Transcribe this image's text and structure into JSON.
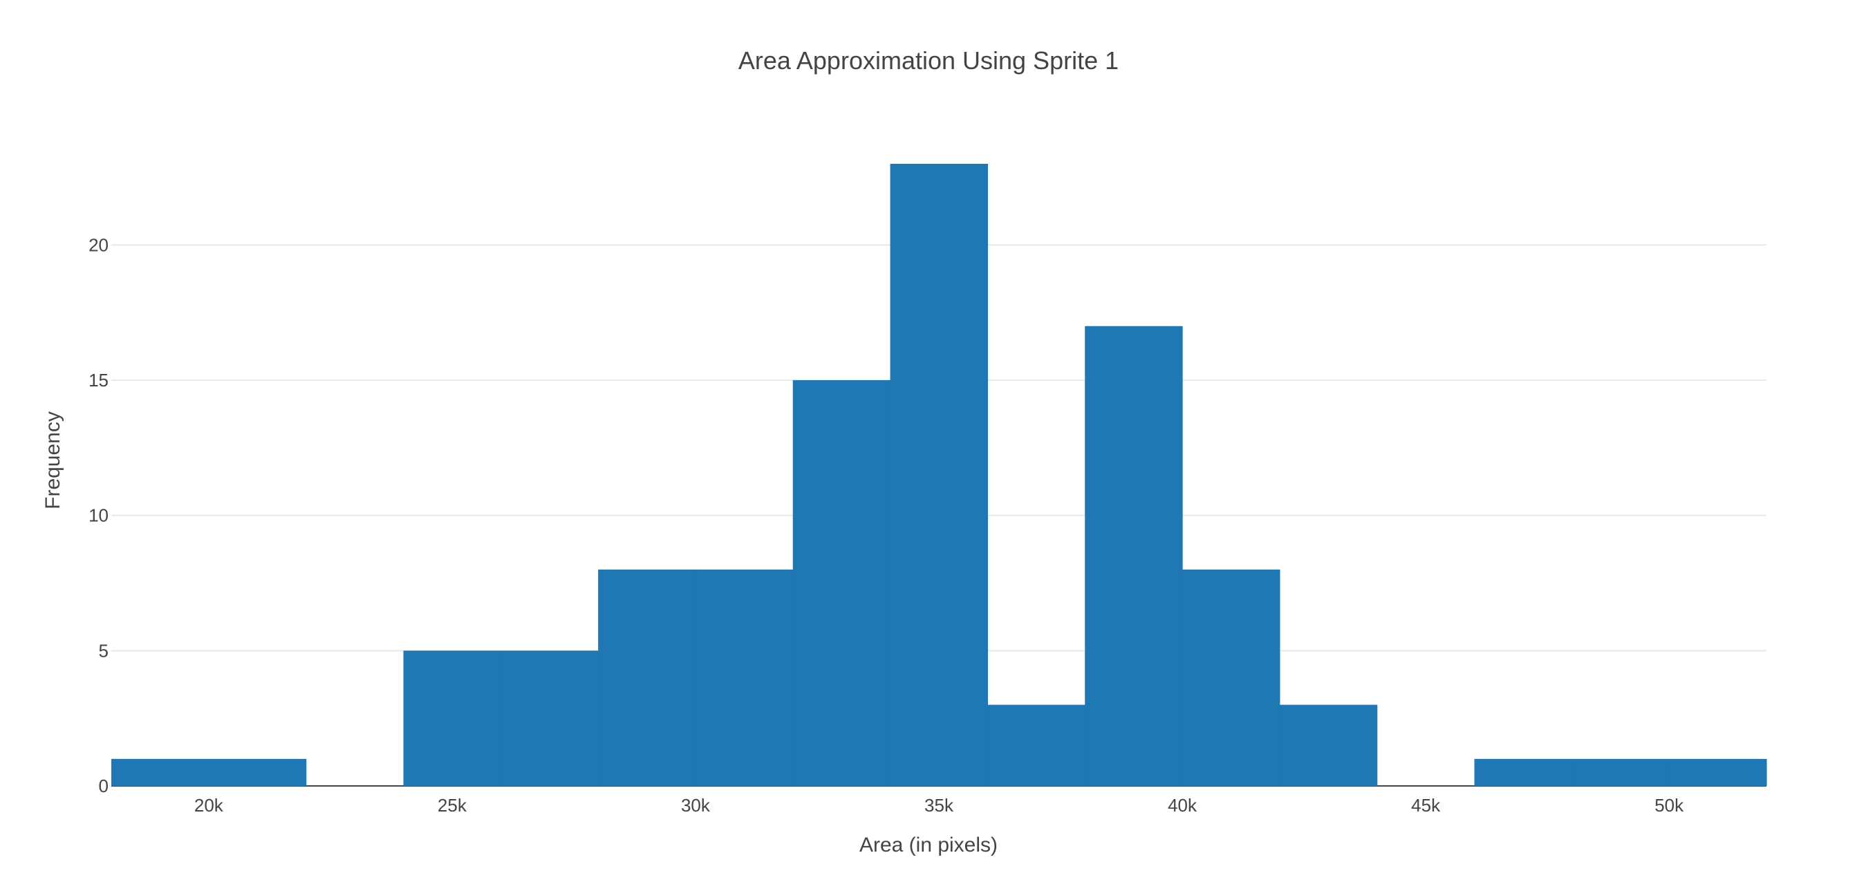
{
  "chart_data": {
    "type": "bar",
    "title": "Area Approximation Using Sprite 1",
    "xlabel": "Area (in pixels)",
    "ylabel": "Frequency",
    "bar_color": "#1f77b4",
    "bin_width": 2000,
    "bins": [
      {
        "start": 18000,
        "end": 20000,
        "count": 1
      },
      {
        "start": 20000,
        "end": 22000,
        "count": 1
      },
      {
        "start": 22000,
        "end": 24000,
        "count": 0
      },
      {
        "start": 24000,
        "end": 26000,
        "count": 5
      },
      {
        "start": 26000,
        "end": 28000,
        "count": 5
      },
      {
        "start": 28000,
        "end": 30000,
        "count": 8
      },
      {
        "start": 30000,
        "end": 32000,
        "count": 8
      },
      {
        "start": 32000,
        "end": 34000,
        "count": 15
      },
      {
        "start": 34000,
        "end": 36000,
        "count": 23
      },
      {
        "start": 36000,
        "end": 38000,
        "count": 3
      },
      {
        "start": 38000,
        "end": 40000,
        "count": 17
      },
      {
        "start": 40000,
        "end": 42000,
        "count": 8
      },
      {
        "start": 42000,
        "end": 44000,
        "count": 3
      },
      {
        "start": 44000,
        "end": 46000,
        "count": 0
      },
      {
        "start": 46000,
        "end": 48000,
        "count": 1
      },
      {
        "start": 48000,
        "end": 50000,
        "count": 1
      },
      {
        "start": 50000,
        "end": 52000,
        "count": 1
      }
    ],
    "xlim": [
      18000,
      52000
    ],
    "ylim": [
      0,
      24.2
    ],
    "x_ticks": [
      {
        "value": 20000,
        "label": "20k"
      },
      {
        "value": 25000,
        "label": "25k"
      },
      {
        "value": 30000,
        "label": "30k"
      },
      {
        "value": 35000,
        "label": "35k"
      },
      {
        "value": 40000,
        "label": "40k"
      },
      {
        "value": 45000,
        "label": "45k"
      },
      {
        "value": 50000,
        "label": "50k"
      }
    ],
    "y_ticks": [
      {
        "value": 0,
        "label": "0"
      },
      {
        "value": 5,
        "label": "5"
      },
      {
        "value": 10,
        "label": "10"
      },
      {
        "value": 15,
        "label": "15"
      },
      {
        "value": 20,
        "label": "20"
      }
    ],
    "grid": true,
    "legend": false
  }
}
